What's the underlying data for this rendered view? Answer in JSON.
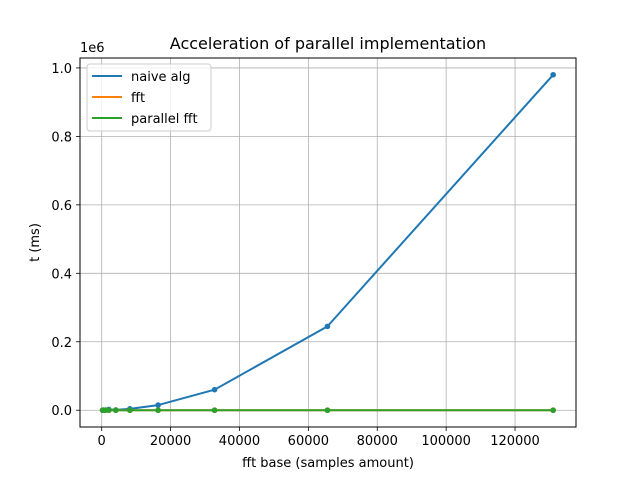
{
  "chart_data": {
    "type": "line",
    "title": "Acceleration of parallel implementation",
    "xlabel": "fft base (samples amount)",
    "ylabel": "t (ms)",
    "y_offset_label": "1e6",
    "xlim": [
      -6300,
      137700
    ],
    "ylim": [
      -0.049,
      1.029
    ],
    "y_scale_factor": 1000000,
    "x_ticks": [
      0,
      20000,
      40000,
      60000,
      80000,
      100000,
      120000
    ],
    "x_tick_labels": [
      "0",
      "20000",
      "40000",
      "60000",
      "80000",
      "100000",
      "120000"
    ],
    "y_ticks": [
      0.0,
      0.2,
      0.4,
      0.6,
      0.8,
      1.0
    ],
    "y_tick_labels": [
      "0.0",
      "0.2",
      "0.4",
      "0.6",
      "0.8",
      "1.0"
    ],
    "grid": true,
    "legend_position": "top-left",
    "x": [
      256,
      512,
      1024,
      2048,
      4096,
      8192,
      16384,
      32768,
      65536,
      131072
    ],
    "series": [
      {
        "name": "naive alg",
        "color": "#1f77b4",
        "values": [
          4e-05,
          0.00015,
          0.0006,
          0.0025,
          0.001,
          0.004,
          0.015,
          0.06,
          0.245,
          0.98
        ]
      },
      {
        "name": "fft",
        "color": "#ff7f0e",
        "values": [
          0.0,
          0.0,
          0.0,
          0.0,
          0.0,
          0.0,
          0.0,
          0.0,
          0.0,
          0.0
        ]
      },
      {
        "name": "parallel fft",
        "color": "#2ca02c",
        "values": [
          0.0,
          0.0,
          0.0,
          0.0,
          0.0,
          0.0,
          0.0,
          0.0,
          0.0,
          0.0
        ]
      }
    ]
  }
}
